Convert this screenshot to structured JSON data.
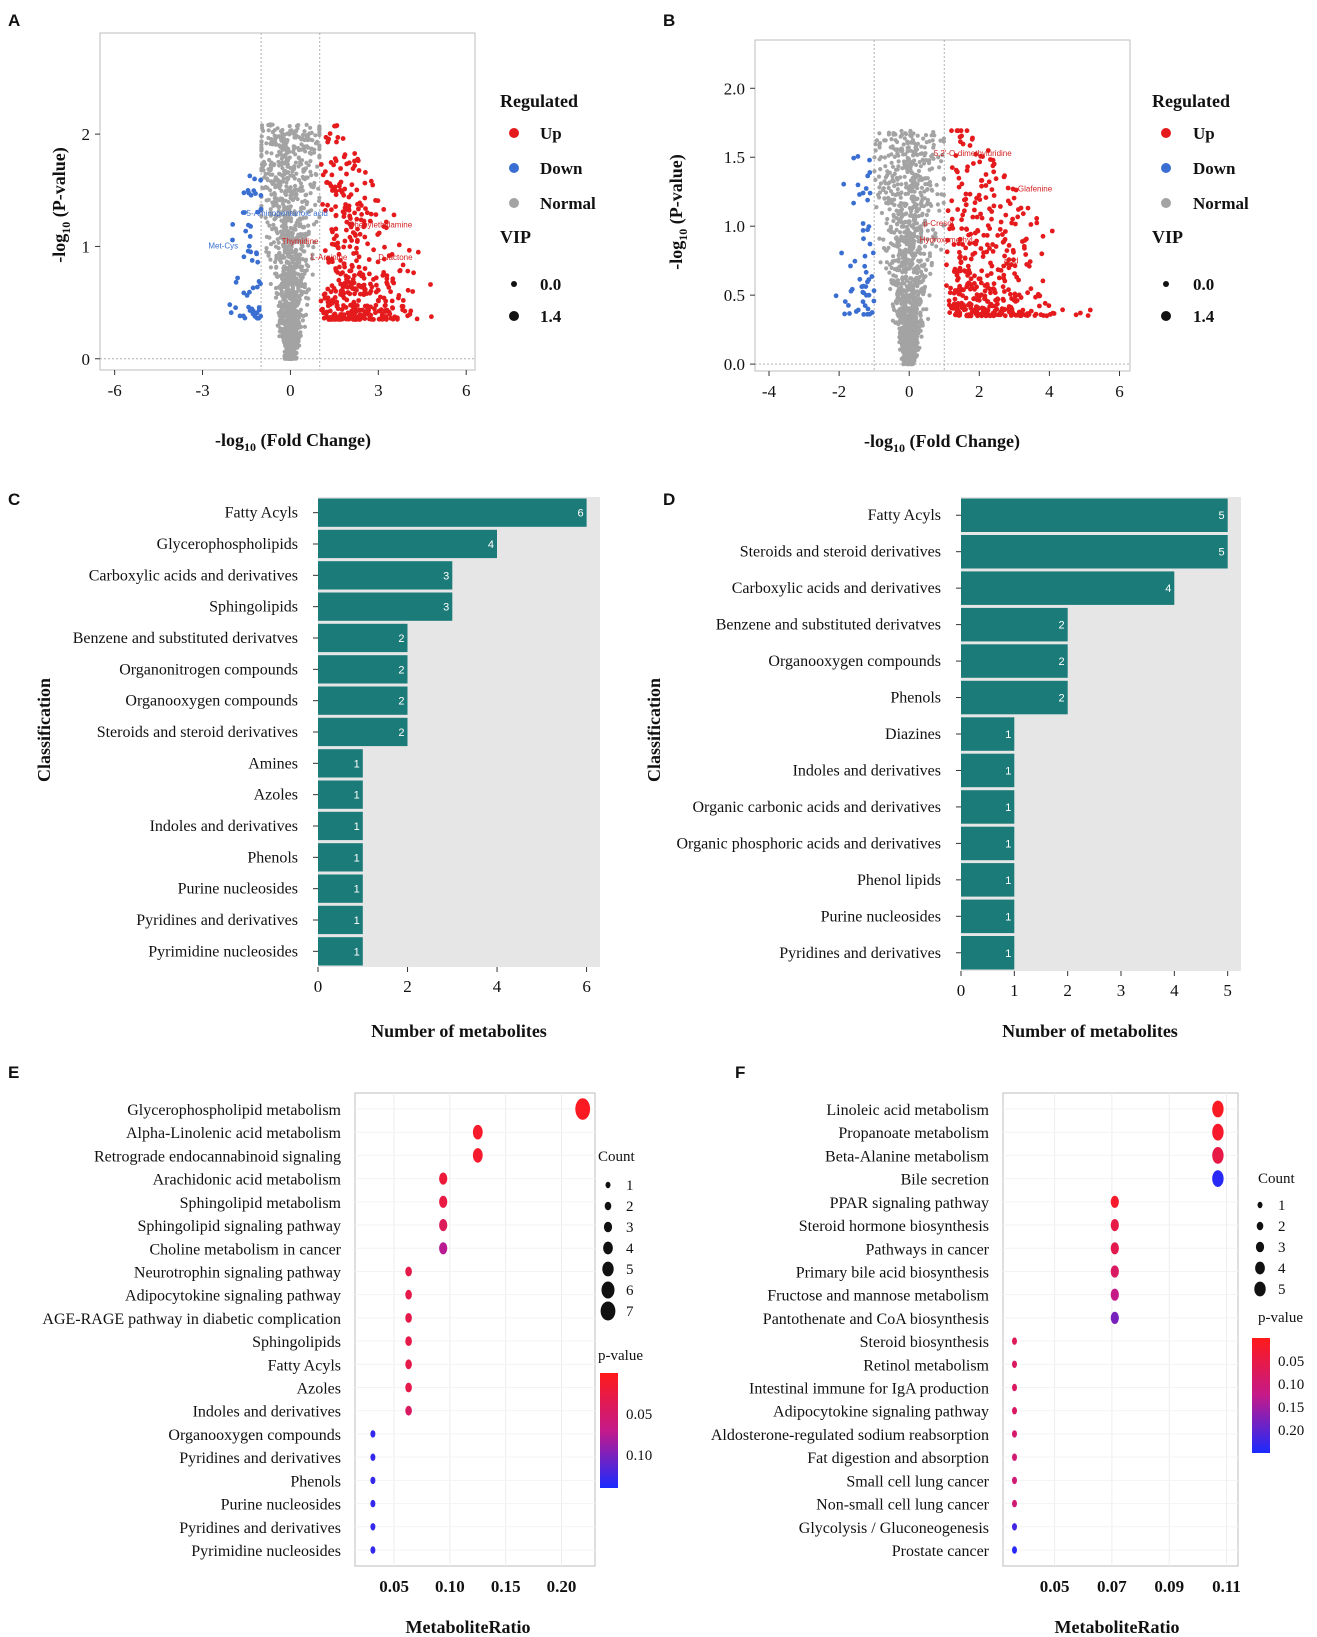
{
  "colors": {
    "up": "#e41a1c",
    "down": "#3a6fd1",
    "normal": "#a3a3a3",
    "bar": "#1b7b78",
    "bar_bg": "#e6e6e6"
  },
  "chart_data": [
    {
      "panel": "A",
      "type": "scatter",
      "xlabel": "-log10 (Fold Change)",
      "ylabel": "-log10 (P-value)",
      "xlim": [
        -6.5,
        6.3
      ],
      "ylim": [
        -0.1,
        2.9
      ],
      "xticks": [
        "-6",
        "-3",
        "0",
        "3",
        "6"
      ],
      "yticks": [
        "0",
        "1",
        "2"
      ],
      "thresholds_x": [
        -1,
        1
      ],
      "legend": {
        "title": "Regulated",
        "items": [
          "Up",
          "Down",
          "Normal"
        ],
        "vip_title": "VIP",
        "vip_items": [
          "0.0",
          "1.4"
        ]
      },
      "annotations": [
        {
          "text": "5-Aminopentanoic acid",
          "x": -1.5,
          "y": 1.27,
          "group": "down"
        },
        {
          "text": "Met-Cys",
          "x": -2.8,
          "y": 0.98,
          "group": "down"
        },
        {
          "text": "Thymidine",
          "x": -0.3,
          "y": 1.02,
          "group": "up"
        },
        {
          "text": "Phenylethylamine",
          "x": 2.0,
          "y": 1.17,
          "group": "up"
        },
        {
          "text": "L-Arginine",
          "x": 0.7,
          "y": 0.88,
          "group": "up"
        },
        {
          "text": "D-lactone",
          "x": 3.0,
          "y": 0.88,
          "group": "up"
        }
      ]
    },
    {
      "panel": "B",
      "type": "scatter",
      "xlabel": "-log10 (Fold Change)",
      "ylabel": "-log10 (P-value)",
      "xlim": [
        -4.4,
        6.3
      ],
      "ylim": [
        -0.05,
        2.35
      ],
      "xticks": [
        "-4",
        "-2",
        "0",
        "2",
        "4",
        "6"
      ],
      "yticks": [
        "0.0",
        "0.5",
        "1.0",
        "1.5",
        "2.0"
      ],
      "thresholds_x": [
        -1,
        1
      ],
      "legend": {
        "title": "Regulated",
        "items": [
          "Up",
          "Down",
          "Normal"
        ],
        "vip_title": "VIP",
        "vip_items": [
          "0.0",
          "1.4"
        ]
      },
      "annotations": [
        {
          "text": "5,2'-O-dimethyluridine",
          "x": 0.7,
          "y": 1.51,
          "group": "up"
        },
        {
          "text": "Glafenine",
          "x": 3.1,
          "y": 1.25,
          "group": "up"
        },
        {
          "text": "p-Cresol",
          "x": 0.4,
          "y": 1.0,
          "group": "up"
        },
        {
          "text": "Hydroxymethyl",
          "x": 0.3,
          "y": 0.88,
          "group": "up"
        },
        {
          "text": "acid",
          "x": 2.7,
          "y": 0.73,
          "group": "up"
        }
      ]
    },
    {
      "panel": "C",
      "type": "bar",
      "orientation": "horizontal",
      "ylabel": "Classification",
      "xlabel": "Number of metabolites",
      "xlim": [
        0,
        6.3
      ],
      "xticks": [
        "0",
        "2",
        "4",
        "6"
      ],
      "categories": [
        "Fatty Acyls",
        "Glycerophospholipids",
        "Carboxylic acids and derivatives",
        "Sphingolipids",
        "Benzene and substituted derivatves",
        "Organonitrogen compounds",
        "Organooxygen compounds",
        "Steroids and steroid derivatives",
        "Amines",
        "Azoles",
        "Indoles and derivatives",
        "Phenols",
        "Purine nucleosides",
        "Pyridines and derivatives",
        "Pyrimidine nucleosides"
      ],
      "values": [
        6,
        4,
        3,
        3,
        2,
        2,
        2,
        2,
        1,
        1,
        1,
        1,
        1,
        1,
        1
      ]
    },
    {
      "panel": "D",
      "type": "bar",
      "orientation": "horizontal",
      "ylabel": "Classification",
      "xlabel": "Number of metabolites",
      "xlim": [
        0,
        5.25
      ],
      "xticks": [
        "0",
        "1",
        "2",
        "3",
        "4",
        "5"
      ],
      "categories": [
        "Fatty Acyls",
        "Steroids and steroid derivatives",
        "Carboxylic acids and derivatives",
        "Benzene and substituted derivatves",
        "Organooxygen compounds",
        "Phenols",
        "Diazines",
        "Indoles and derivatives",
        "Organic carbonic acids and derivatives",
        "Organic phosphoric acids and derivatives",
        "Phenol lipids",
        "Purine nucleosides",
        "Pyridines and derivatives"
      ],
      "values": [
        5,
        5,
        4,
        2,
        2,
        2,
        1,
        1,
        1,
        1,
        1,
        1,
        1
      ]
    },
    {
      "panel": "E",
      "type": "scatter",
      "subtype": "dot",
      "xlabel": "MetaboliteRatio",
      "xlim": [
        0.015,
        0.23
      ],
      "xticks": [
        "0.05",
        "0.10",
        "0.15",
        "0.20"
      ],
      "xtick_values": [
        0.05,
        0.1,
        0.15,
        0.2
      ],
      "categories": [
        "Glycerophospholipid metabolism",
        "Alpha-Linolenic acid metabolism",
        "Retrograde endocannabinoid signaling",
        "Arachidonic acid metabolism",
        "Sphingolipid metabolism",
        "Sphingolipid signaling pathway",
        "Choline metabolism in cancer",
        "Neurotrophin signaling pathway",
        "Adipocytokine signaling pathway",
        "AGE-RAGE pathway in diabetic complication",
        "Sphingolipids",
        "Fatty Acyls",
        "Azoles",
        "Indoles and derivatives",
        "Organooxygen compounds",
        "Pyridines and derivatives",
        "Phenols",
        "Purine nucleosides",
        "Pyridines and derivatives",
        "Pyrimidine nucleosides"
      ],
      "ratio": [
        0.219,
        0.125,
        0.125,
        0.094,
        0.094,
        0.094,
        0.094,
        0.063,
        0.063,
        0.063,
        0.063,
        0.063,
        0.063,
        0.063,
        0.031,
        0.031,
        0.031,
        0.031,
        0.031,
        0.031
      ],
      "count": [
        7,
        4,
        4,
        3,
        3,
        3,
        3,
        2,
        2,
        2,
        2,
        2,
        2,
        2,
        1,
        1,
        1,
        1,
        1,
        1
      ],
      "pvalue": [
        0.005,
        0.01,
        0.012,
        0.02,
        0.025,
        0.04,
        0.075,
        0.03,
        0.03,
        0.03,
        0.03,
        0.03,
        0.03,
        0.045,
        0.13,
        0.13,
        0.13,
        0.13,
        0.13,
        0.13
      ],
      "count_legend": {
        "title": "Count",
        "values": [
          "1",
          "2",
          "3",
          "4",
          "5",
          "6",
          "7"
        ]
      },
      "p_legend": {
        "title": "p-value",
        "ticks": [
          "0.05",
          "0.10"
        ],
        "range": [
          0.0,
          0.14
        ]
      }
    },
    {
      "panel": "F",
      "type": "scatter",
      "subtype": "dot",
      "xlabel": "MetaboliteRatio",
      "xlim": [
        0.032,
        0.114
      ],
      "xticks": [
        "0.05",
        "0.07",
        "0.09",
        "0.11"
      ],
      "xtick_values": [
        0.05,
        0.07,
        0.09,
        0.11
      ],
      "categories": [
        "Linoleic acid metabolism",
        "Propanoate metabolism",
        "Beta-Alanine metabolism",
        "Bile secretion",
        "PPAR signaling pathway",
        "Steroid hormone biosynthesis",
        "Pathways in cancer",
        "Primary bile acid biosynthesis",
        "Fructose and mannose metabolism",
        "Pantothenate and CoA biosynthesis",
        "Steroid biosynthesis",
        "Retinol metabolism",
        "Intestinal immune for IgA production",
        "Adipocytokine signaling pathway",
        "Aldosterone-regulated sodium reabsorption",
        "Fat digestion and absorption",
        "Small cell lung cancer",
        "Non-small cell lung cancer",
        "Glycolysis / Gluconeogenesis",
        "Prostate cancer"
      ],
      "ratio": [
        0.107,
        0.107,
        0.107,
        0.107,
        0.071,
        0.071,
        0.071,
        0.071,
        0.071,
        0.071,
        0.036,
        0.036,
        0.036,
        0.036,
        0.036,
        0.036,
        0.036,
        0.036,
        0.036,
        0.036
      ],
      "count": [
        5,
        5,
        5,
        5,
        3,
        3,
        3,
        3,
        3,
        3,
        1,
        1,
        1,
        1,
        1,
        1,
        1,
        1,
        1,
        1
      ],
      "pvalue": [
        0.01,
        0.02,
        0.05,
        0.24,
        0.02,
        0.05,
        0.06,
        0.08,
        0.12,
        0.18,
        0.07,
        0.08,
        0.08,
        0.08,
        0.09,
        0.1,
        0.1,
        0.1,
        0.22,
        0.24
      ],
      "count_legend": {
        "title": "Count",
        "values": [
          "1",
          "2",
          "3",
          "4",
          "5"
        ]
      },
      "p_legend": {
        "title": "p-value",
        "ticks": [
          "0.05",
          "0.10",
          "0.15",
          "0.20"
        ],
        "range": [
          0.0,
          0.25
        ]
      }
    }
  ]
}
